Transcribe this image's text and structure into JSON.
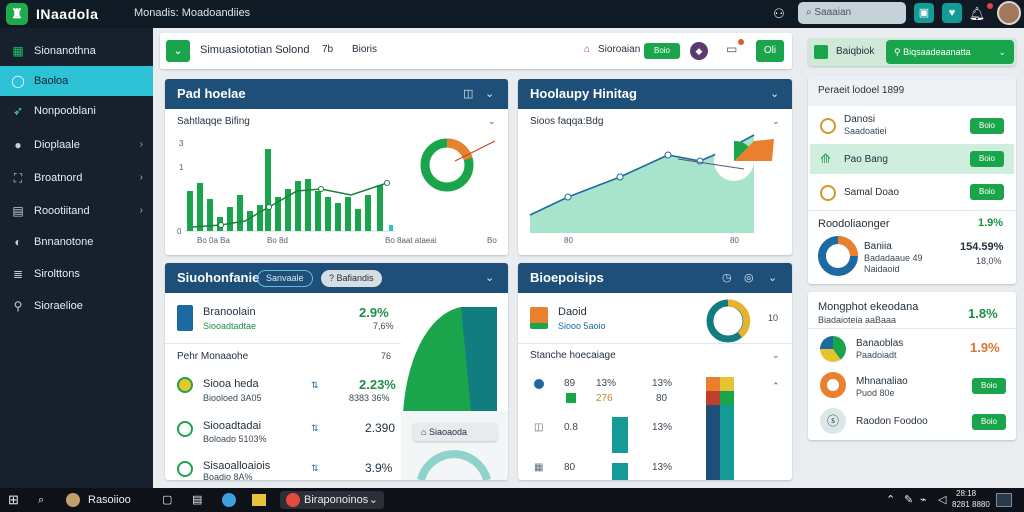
{
  "app": {
    "brand": "INaadola",
    "nav_text": "Monadis: Moadoandiies",
    "search_placeholder": "Saaaian"
  },
  "topbar_icons": [
    "user-icon",
    "search-icon",
    "square-icon",
    "shield-icon",
    "bell-icon"
  ],
  "sidebar": {
    "items": [
      {
        "label": "Sionanothna",
        "icon": "grid-icon"
      },
      {
        "label": "Baoloa",
        "icon": "circle-icon"
      },
      {
        "label": "Nonpooblani",
        "icon": "rocket-icon"
      },
      {
        "label": "Dioplaale",
        "icon": "disc-icon"
      },
      {
        "label": "Broatnord",
        "icon": "frame-icon"
      },
      {
        "label": "Roootiitand",
        "icon": "window-icon"
      },
      {
        "label": "Bnnanotone",
        "icon": "globe-icon"
      },
      {
        "label": "Sirolttons",
        "icon": "stack-icon"
      },
      {
        "label": "Sioraelioe",
        "icon": "pin-icon"
      }
    ]
  },
  "toolbar": {
    "title": "Simuasiototian Solond",
    "mid": "7b",
    "right": "Bioris",
    "link_label": "Sioroaian",
    "btn1": "Boio",
    "btn2": "Oli"
  },
  "right_top": {
    "label": "Baiqbiok",
    "dropdown": "Biqsaadeaanatta"
  },
  "panels": {
    "p1": {
      "title": "Pad hoelae",
      "subtitle": "Sahtlaqqe Bifing",
      "y_ticks": [
        "3",
        "1",
        "0"
      ],
      "x_ticks": [
        "Bo 0a Ba",
        "Bo 8d",
        "Bo 8aat ataeai",
        "Bo"
      ]
    },
    "p2": {
      "title": "Hoolaupy Hinitag",
      "subtitle": "Sioos faqqa:Bdg",
      "x_ticks": [
        "80",
        "80"
      ]
    },
    "p3": {
      "title": "Siuohonfanie",
      "tag1": "Sanvaale",
      "tag2": "Bafiandis",
      "tag2_prefix": "?",
      "row1": {
        "name": "Branoolain",
        "sub": "Siooadtadtae",
        "value": "2.9%",
        "sub_value": "7,6%"
      },
      "section": "Pehr Monaaohe",
      "section_right": "76",
      "rows": [
        {
          "name": "Siooa heda",
          "sub": "Biooloed 3A05",
          "value": "2.23%",
          "sub_value": "8383 36%"
        },
        {
          "name": "Siooadtadai",
          "sub": "Boloado 5103%",
          "value": "2.390",
          "sub_value": ""
        },
        {
          "name": "Sisaoalloaiois",
          "sub": "Boadio 8A%",
          "value": "3.9%",
          "sub_value": ""
        }
      ],
      "pill": "Siaoaoda"
    },
    "p4": {
      "title": "Bioepoisips",
      "row1": {
        "name": "Daoid",
        "sub": "Siooo 5aoio",
        "value": "10"
      },
      "section": "Stanche hoecaiage",
      "table": [
        [
          "89",
          "13%",
          "13%"
        ],
        [
          "276",
          "",
          "80"
        ],
        [
          "0.8",
          "",
          "13%"
        ],
        [
          "80",
          "",
          "13%"
        ]
      ]
    }
  },
  "right_panel": {
    "title": "Peraeit lodoel 1899",
    "items": [
      {
        "name": "Danosi",
        "sub": "Saadoatiei",
        "btn": "Boio"
      },
      {
        "name": "Pao Bang",
        "sub": "",
        "btn": "Boio"
      },
      {
        "name": "Samal Doao",
        "sub": "",
        "btn": "Boio"
      }
    ],
    "rate_label": "Roodoliaonger",
    "rate_value": "1.9%",
    "donut_title": "Baniia",
    "donut_sub": "Badadaaue 49",
    "donut_sub2": "Naidaoid",
    "donut_value": "154.59%",
    "donut_sub_value": "18,0%"
  },
  "right_panel2": {
    "title": "Mongphot ekeodana",
    "subtitle": "Biadaioteia aaBaaa",
    "value": "1.8%",
    "items": [
      {
        "name": "Banaoblas",
        "sub": "Paadoiadt",
        "value": "1.9%",
        "btn": ""
      },
      {
        "name": "Mhnanaliao",
        "sub": "Puod 80e",
        "value": "",
        "btn": "Boio"
      },
      {
        "name": "Raodon Foodoo",
        "sub": "",
        "value": "",
        "btn": "Boio"
      }
    ]
  },
  "taskbar": {
    "search_label": "Rasoiioo",
    "app_label": "Biraponoinos",
    "clock": "28:18",
    "date": "8281 8880"
  },
  "colors": {
    "green": "#1aa54c",
    "teal": "#149b95",
    "navy": "#1d4f79",
    "orange": "#e8802f",
    "cyan": "#2ec2d6"
  }
}
